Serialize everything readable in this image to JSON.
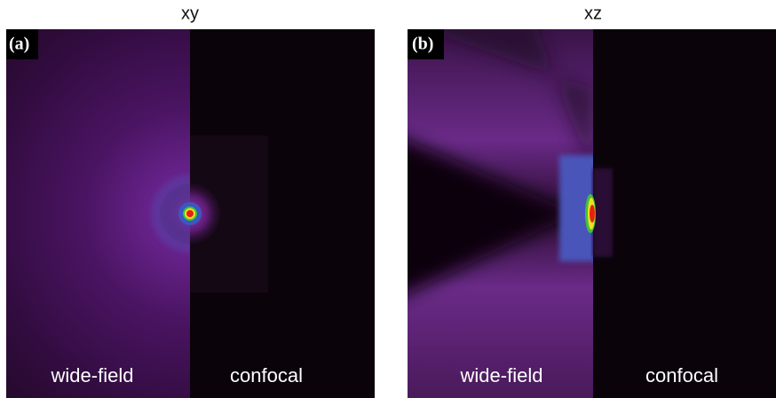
{
  "panels": [
    {
      "title": "xy",
      "label": "(a)",
      "left_caption": "wide-field",
      "right_caption": "confocal"
    },
    {
      "title": "xz",
      "label": "(b)",
      "left_caption": "wide-field",
      "right_caption": "confocal"
    }
  ]
}
